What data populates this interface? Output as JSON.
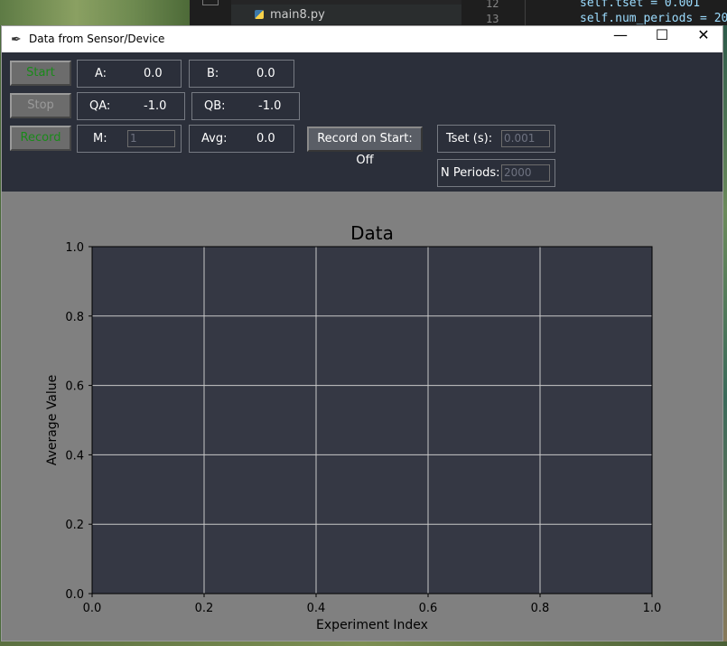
{
  "background": {
    "file_name": "main8.py",
    "line_numbers": [
      "12",
      "13"
    ],
    "code_lines": [
      "self.tset = 0.001",
      "self.num_periods = 20"
    ]
  },
  "window": {
    "title": "Data from Sensor/Device",
    "minimize_glyph": "—",
    "maximize_glyph": "☐",
    "close_glyph": "✕"
  },
  "controls": {
    "start_label": "Start",
    "stop_label": "Stop",
    "record_label": "Record",
    "record_on_start_label": "Record on Start: Off",
    "a": {
      "label": "A:",
      "value": "0.0"
    },
    "b": {
      "label": "B:",
      "value": "0.0"
    },
    "qa": {
      "label": "QA:",
      "value": "-1.0"
    },
    "qb": {
      "label": "QB:",
      "value": "-1.0"
    },
    "m": {
      "label": "M:",
      "value": "1"
    },
    "avg": {
      "label": "Avg:",
      "value": "0.0"
    },
    "tset": {
      "label": "Tset (s):",
      "value": "0.001"
    },
    "nperiods": {
      "label": "N Periods:",
      "value": "2000"
    }
  },
  "colors": {
    "panel_bg": "#2b2f3a",
    "plot_bg": "#353844",
    "figure_bg": "#808080",
    "grid": "#c8c8c8",
    "start_text": "#1a8a1a"
  },
  "chart_data": {
    "type": "line",
    "title": "Data",
    "xlabel": "Experiment Index",
    "ylabel": "Average Value",
    "xlim": [
      0.0,
      1.0
    ],
    "ylim": [
      0.0,
      1.0
    ],
    "x_ticks": [
      "0.0",
      "0.2",
      "0.4",
      "0.6",
      "0.8",
      "1.0"
    ],
    "y_ticks": [
      "0.0",
      "0.2",
      "0.4",
      "0.6",
      "0.8",
      "1.0"
    ],
    "grid": true,
    "series": []
  }
}
